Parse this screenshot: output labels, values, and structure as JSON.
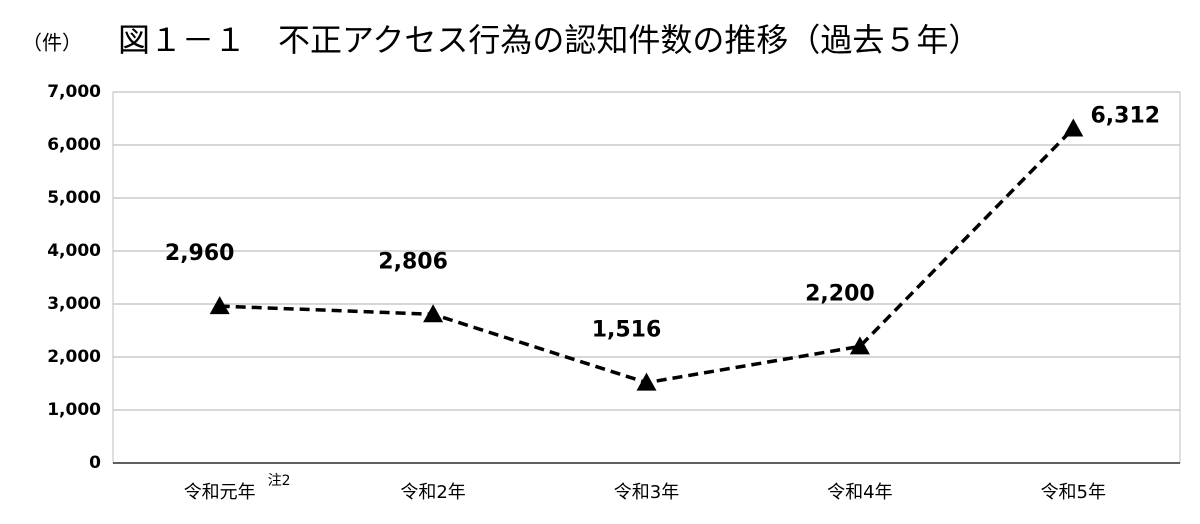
{
  "chart_data": {
    "type": "line",
    "title": "図１－１　不正アクセス行為の認知件数の推移（過去５年）",
    "y_label": "（件）",
    "categories": [
      "令和元年",
      "令和2年",
      "令和3年",
      "令和4年",
      "令和5年"
    ],
    "category_notes": [
      "注2",
      null,
      null,
      null,
      null
    ],
    "series": [
      {
        "name": "不正アクセス行為の認知件数",
        "color": "#000000",
        "values": [
          2960,
          2806,
          1516,
          2200,
          6312
        ],
        "value_labels": [
          "2,960",
          "2,806",
          "1,516",
          "2,200",
          "6,312"
        ]
      }
    ],
    "ylim": [
      0,
      7000
    ],
    "yticks": [
      0,
      {
        "value": 1000,
        "label": "1,000"
      },
      {
        "value": 2000,
        "label": "2,000"
      },
      {
        "value": 3000,
        "label": "3,000"
      },
      {
        "value": 4000,
        "label": "4,000"
      },
      {
        "value": 5000,
        "label": "5,000"
      },
      {
        "value": 6000,
        "label": "6,000"
      },
      {
        "value": 7000,
        "label": "7,000"
      }
    ],
    "grid": true
  }
}
